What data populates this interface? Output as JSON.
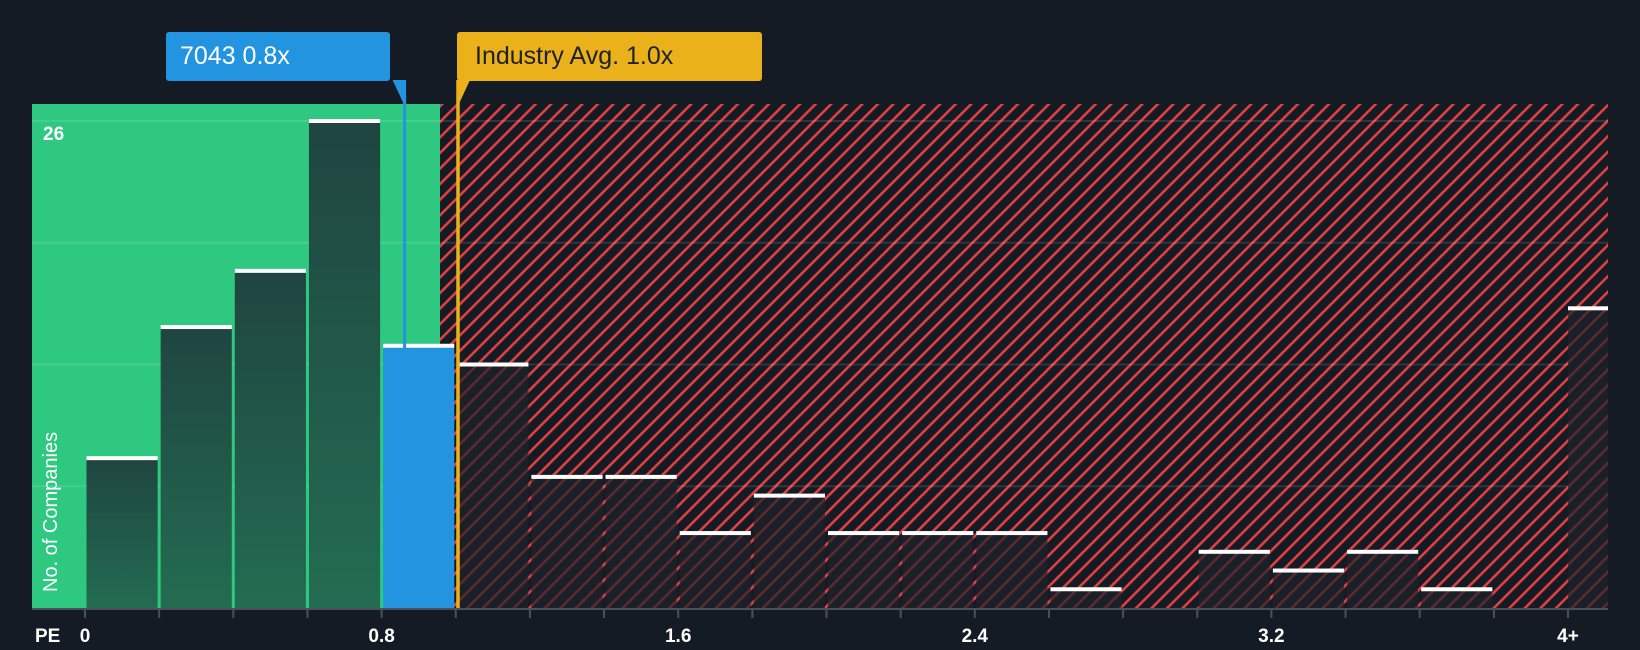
{
  "header": {
    "company_callout": "7043 0.8x",
    "industry_callout": "Industry Avg. 1.0x"
  },
  "axes": {
    "y_label": "No. of Companies",
    "y_top_tick": "26",
    "x_prefix": "PE",
    "x_ticks": [
      {
        "label": "0",
        "value": 0
      },
      {
        "label": "0.8",
        "value": 0.8
      },
      {
        "label": "1.6",
        "value": 1.6
      },
      {
        "label": "2.4",
        "value": 2.4
      },
      {
        "label": "3.2",
        "value": 3.2
      },
      {
        "label": "4+",
        "value": 4.0
      }
    ]
  },
  "colors": {
    "background": "#151b24",
    "fair_zone": "#2ec880",
    "fair_bar": "#1f4b42",
    "company_bar": "#2394e0",
    "industry_line": "#ebb11a",
    "overvalued_hatch": "#e04040",
    "bar_cap": "#ffffff"
  },
  "chart_data": {
    "type": "bar",
    "title": "",
    "xlabel": "PE",
    "ylabel": "No. of Companies",
    "ylim": [
      0,
      26
    ],
    "grid": true,
    "bin_width": 0.2,
    "categories": [
      "0-0.2",
      "0.2-0.4",
      "0.4-0.6",
      "0.6-0.8",
      "0.8-1.0",
      "1.0-1.2",
      "1.2-1.4",
      "1.4-1.6",
      "1.6-1.8",
      "1.8-2.0",
      "2.0-2.2",
      "2.2-2.4",
      "2.4-2.6",
      "2.6-2.8",
      "2.8-3.0",
      "3.0-3.2",
      "3.2-3.4",
      "3.4-3.6",
      "3.6-3.8",
      "3.8-4.0",
      "4+"
    ],
    "values": [
      8,
      15,
      18,
      26,
      14,
      13,
      7,
      7,
      4,
      6,
      4,
      4,
      4,
      1,
      0,
      3,
      2,
      3,
      1,
      0,
      16
    ],
    "highlight_bin": 4,
    "company": {
      "ticker": "7043",
      "pe": 0.8
    },
    "industry_avg": 1.0,
    "tick_labels": [
      "0",
      "0.8",
      "1.6",
      "2.4",
      "3.2",
      "4+"
    ],
    "annotations": [
      "7043 0.8x",
      "Industry Avg. 1.0x"
    ]
  }
}
